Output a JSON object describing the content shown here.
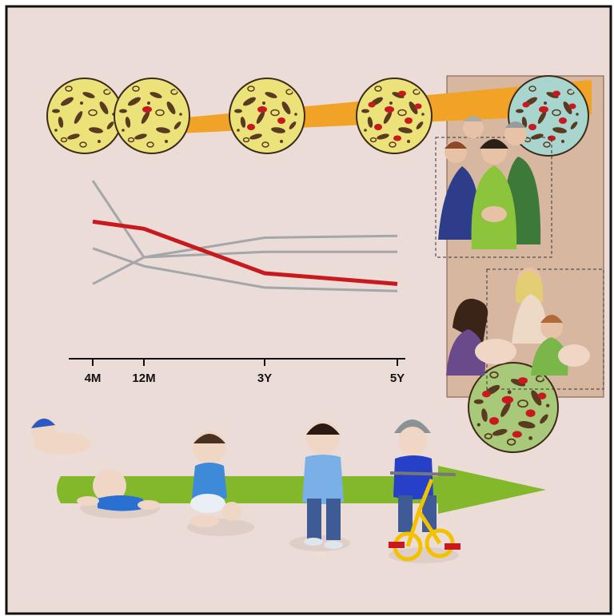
{
  "chart_data": {
    "type": "line",
    "x": [
      "4M",
      "12M",
      "3Y",
      "5Y"
    ],
    "series": [
      {
        "values": [
          0.77,
          0.73,
          0.48,
          0.42
        ],
        "color": "#c8191e",
        "emphasis": true
      },
      {
        "values": [
          0.62,
          0.52,
          0.4,
          0.38
        ],
        "color": "#a3a7a9"
      },
      {
        "values": [
          0.42,
          0.57,
          0.6,
          0.6
        ],
        "color": "#a3a7a9"
      },
      {
        "values": [
          1.0,
          0.57,
          0.68,
          0.69
        ],
        "color": "#a3a7a9"
      }
    ],
    "ylim": [
      0,
      1.05
    ],
    "grid": false
  },
  "timeline": {
    "ages": [
      "4M",
      "12M",
      "3Y",
      "5Y"
    ],
    "arrow_color": "#82b82a",
    "band_color": "#f0a327",
    "microbiota_fill": "#ece27a",
    "adult_microbiota_fill": "#a8d6cf",
    "signature_taxa_color": "#c8191e"
  },
  "colors": {
    "background": "#ecdcd7",
    "family_panel": "#d8b7a0"
  }
}
